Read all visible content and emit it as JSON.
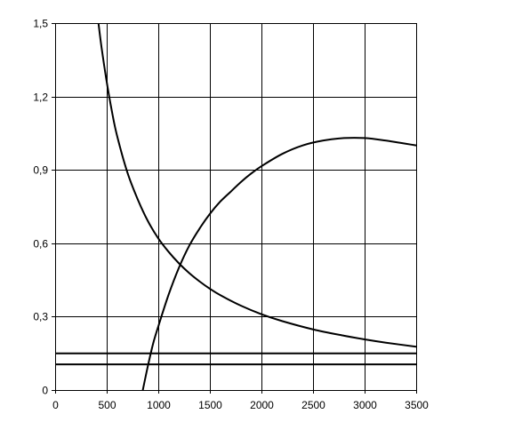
{
  "chart_data": {
    "type": "line",
    "title": "",
    "xlabel": "",
    "ylabel": "",
    "xlim": [
      0,
      3500
    ],
    "ylim": [
      0,
      1.5
    ],
    "grid": true,
    "legend": "none",
    "x_ticks": [
      "0",
      "500",
      "1000",
      "1500",
      "2000",
      "2500",
      "3000",
      "3500"
    ],
    "x_tick_values": [
      0,
      500,
      1000,
      1500,
      2000,
      2500,
      3000,
      3500
    ],
    "y_ticks": [
      "0",
      "0,3",
      "0,6",
      "0,9",
      "1,2",
      "1,5"
    ],
    "y_tick_values": [
      0,
      0.3,
      0.6,
      0.9,
      1.2,
      1.5
    ],
    "series": [
      {
        "color": "#000000",
        "x": [
          420,
          450,
          500,
          550,
          600,
          700,
          800,
          900,
          1000,
          1100,
          1200,
          1300,
          1400,
          1500,
          1600,
          1800,
          2000,
          2200,
          2500,
          2800,
          3000,
          3200,
          3500
        ],
        "y": [
          1.5,
          1.4,
          1.26,
          1.14,
          1.04,
          0.89,
          0.78,
          0.69,
          0.62,
          0.565,
          0.518,
          0.478,
          0.444,
          0.414,
          0.388,
          0.345,
          0.31,
          0.282,
          0.248,
          0.222,
          0.207,
          0.194,
          0.177
        ]
      },
      {
        "color": "#000000",
        "x": [
          850,
          900,
          950,
          1000,
          1100,
          1200,
          1300,
          1400,
          1500,
          1600,
          1700,
          1800,
          1900,
          2000,
          2200,
          2400,
          2600,
          2800,
          3000,
          3200,
          3500
        ],
        "y": [
          0,
          0.1,
          0.19,
          0.26,
          0.39,
          0.5,
          0.59,
          0.66,
          0.72,
          0.77,
          0.81,
          0.85,
          0.885,
          0.915,
          0.965,
          1.0,
          1.02,
          1.03,
          1.03,
          1.02,
          1.0
        ]
      },
      {
        "color": "#000000",
        "x": [
          0,
          3500
        ],
        "y": [
          0.15,
          0.15
        ]
      },
      {
        "color": "#000000",
        "x": [
          0,
          3500
        ],
        "y": [
          0.105,
          0.105
        ]
      }
    ]
  }
}
